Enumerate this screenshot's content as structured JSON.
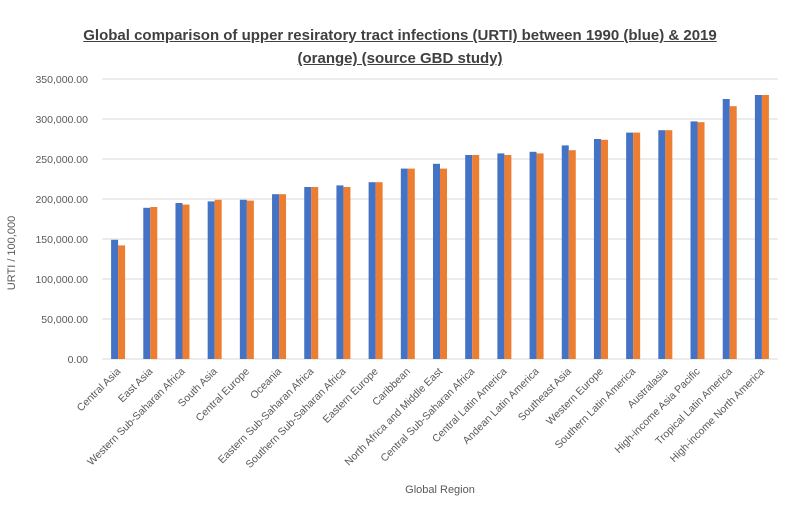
{
  "chart_data": {
    "type": "bar",
    "title": "Global comparison of upper resiratory tract infections (URTI) between 1990 (blue) & 2019 (orange) (source GBD study)",
    "xlabel": "Global Region",
    "ylabel": "URTI / 100,000",
    "ylim": [
      0,
      350000
    ],
    "y_ticks": [
      "0.00",
      "50,000.00",
      "100,000.00",
      "150,000.00",
      "200,000.00",
      "250,000.00",
      "300,000.00",
      "350,000.00"
    ],
    "grid": true,
    "legend": "none",
    "colors": {
      "1990": "#4472C4",
      "2019": "#ED7D31",
      "grid": "#d9d9d9"
    },
    "categories": [
      "Central Asia",
      "East Asia",
      "Western Sub-Saharan Africa",
      "South Asia",
      "Central Europe",
      "Oceania",
      "Eastern Sub-Saharan Africa",
      "Southern Sub-Saharan Africa",
      "Eastern Europe",
      "Caribbean",
      "North Africa and Middle East",
      "Central Sub-Saharan Africa",
      "Central Latin America",
      "Andean Latin America",
      "Southeast Asia",
      "Western Europe",
      "Southern Latin America",
      "Australasia",
      "High-income Asia Pacific",
      "Tropical Latin America",
      "High-income North America"
    ],
    "series": [
      {
        "values": [
          149000,
          189000,
          195000,
          197000,
          199000,
          206000,
          215000,
          217000,
          221000,
          238000,
          244000,
          255000,
          257000,
          259000,
          267000,
          275000,
          283000,
          286000,
          297000,
          325000,
          330000
        ]
      },
      {
        "values": [
          142000,
          190000,
          193000,
          199000,
          198000,
          206000,
          215000,
          215000,
          221000,
          238000,
          238000,
          255000,
          255000,
          257000,
          261000,
          274000,
          283000,
          286000,
          296000,
          316000,
          330000
        ]
      }
    ]
  }
}
